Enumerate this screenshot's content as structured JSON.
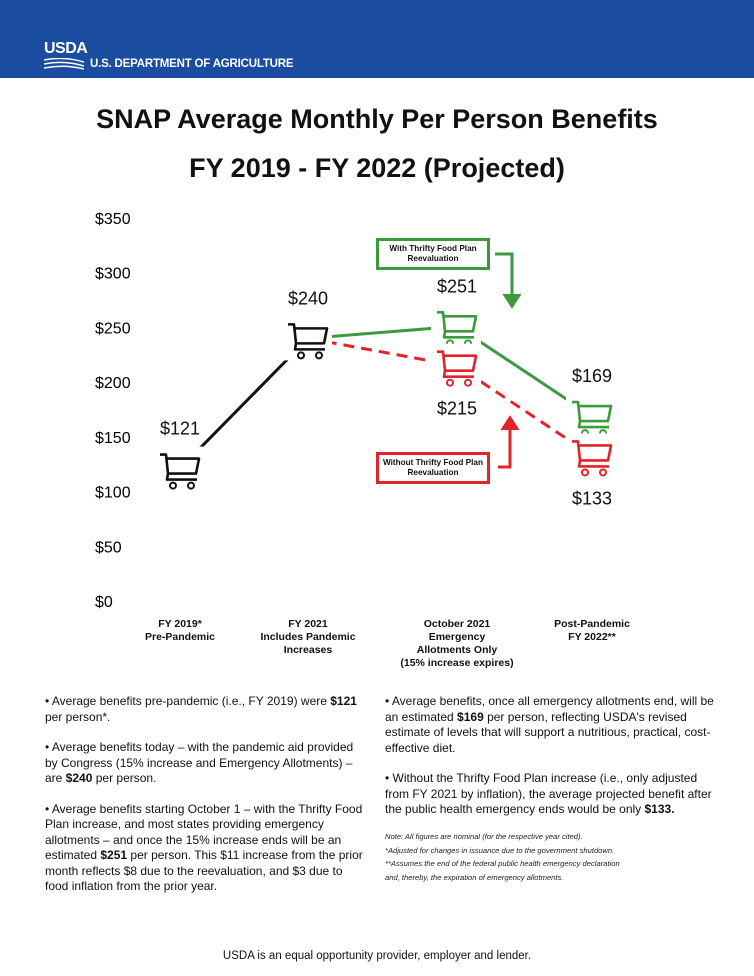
{
  "header": {
    "logo": "USDA",
    "department": "U.S. DEPARTMENT OF AGRICULTURE"
  },
  "chart_data": {
    "type": "line",
    "title": "SNAP Average Monthly Per Person Benefits",
    "subtitle": "FY 2019 - FY 2022 (Projected)",
    "categories": [
      "FY 2019*\nPre-Pandemic",
      "FY 2021\nIncludes Pandemic\nIncreases",
      "October 2021\nEmergency\nAllotments Only\n(15% increase expires)",
      "Post-Pandemic\nFY 2022**"
    ],
    "series": [
      {
        "color": "#111111",
        "dashed": false,
        "values": [
          121,
          240,
          null,
          null
        ],
        "value_labels": [
          "$121",
          "$240",
          null,
          null
        ]
      },
      {
        "name": "With Thrifty Food Plan Reevaluation",
        "color": "#3b9b3c",
        "dashed": false,
        "values": [
          null,
          240,
          251,
          169
        ],
        "value_labels": [
          null,
          null,
          "$251",
          "$169"
        ]
      },
      {
        "name": "Without Thrifty Food Plan Reevaluation",
        "color": "#e1232b",
        "dashed": true,
        "values": [
          null,
          240,
          215,
          133
        ],
        "value_labels": [
          null,
          null,
          "$215",
          "$133"
        ]
      }
    ],
    "ylim": [
      0,
      350
    ],
    "yticks": [
      {
        "value": 0,
        "label": "$0"
      },
      {
        "value": 50,
        "label": "$50"
      },
      {
        "value": 100,
        "label": "$100"
      },
      {
        "value": 150,
        "label": "$150"
      },
      {
        "value": 200,
        "label": "$200"
      },
      {
        "value": 250,
        "label": "$250"
      },
      {
        "value": 300,
        "label": "$300"
      },
      {
        "value": 350,
        "label": "$350"
      }
    ],
    "grid": false
  },
  "bullets_left": [
    [
      "• Average benefits pre-pandemic (i.e., FY 2019) were ",
      "$121",
      " per person*."
    ],
    [
      "• Average benefits today – with the pandemic aid provided by Congress (15% increase and Emergency Allotments) – are ",
      "$240",
      " per person."
    ],
    [
      "• Average benefits starting October 1 – with the Thrifty Food Plan increase, and most states providing emergency allotments – and once the 15% increase ends will be an estimated ",
      "$251",
      " per person. This $11 increase from the prior month reflects $8 due to the reevaluation, and $3 due to food inflation from the prior year."
    ]
  ],
  "bullets_right": [
    [
      "• Average benefits, once all emergency allotments end, will be an estimated ",
      "$169",
      " per person, reflecting USDA's revised estimate of levels that will support a nutritious, practical, cost-effective diet."
    ],
    [
      "• Without the Thrifty Food Plan increase (i.e., only adjusted from FY 2021 by inflation), the average projected benefit after the public health emergency ends would be only ",
      "$133."
    ]
  ],
  "notes": [
    "Note: All figures are nominal (for the respective year cited).",
    "*Adjusted for changes in issuance due to the government shutdown.",
    "**Assumes the end of the federal public health emergency declaration",
    "and, thereby, the expiration of emergency allotments."
  ],
  "footer": "USDA is an equal opportunity provider, employer and lender."
}
